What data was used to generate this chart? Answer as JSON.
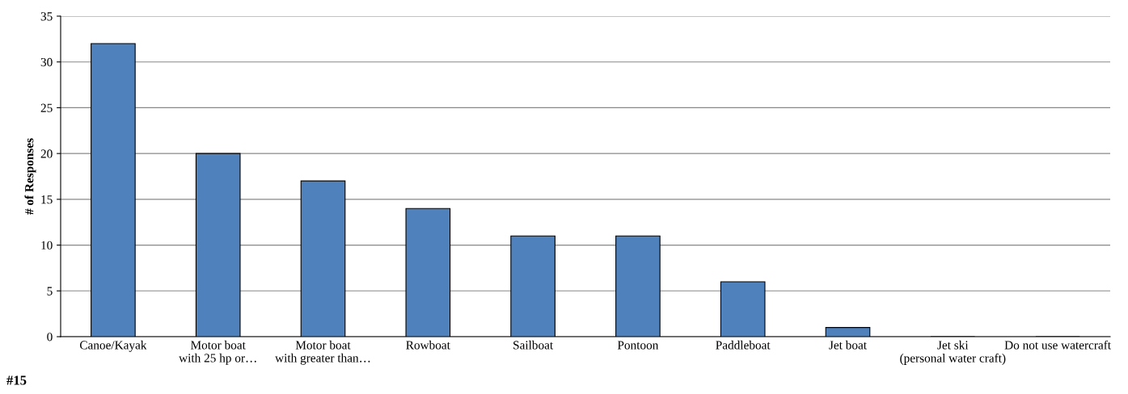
{
  "chart_data": {
    "type": "bar",
    "ylabel": "# of Responses",
    "categories": [
      "Canoe/Kayak",
      "Motor boat\nwith 25 hp or…",
      "Motor boat\nwith greater than…",
      "Rowboat",
      "Sailboat",
      "Pontoon",
      "Paddleboat",
      "Jet boat",
      "Jet ski\n(personal water craft)",
      "Do not use watercraft"
    ],
    "values": [
      32,
      20,
      17,
      14,
      11,
      11,
      6,
      1,
      0,
      0
    ],
    "color": "#4f81bd",
    "ylim": [
      0,
      35
    ],
    "yticks": [
      0,
      5,
      10,
      15,
      20,
      25,
      30,
      35
    ],
    "grid": "y",
    "annotations": [
      "#15"
    ]
  }
}
